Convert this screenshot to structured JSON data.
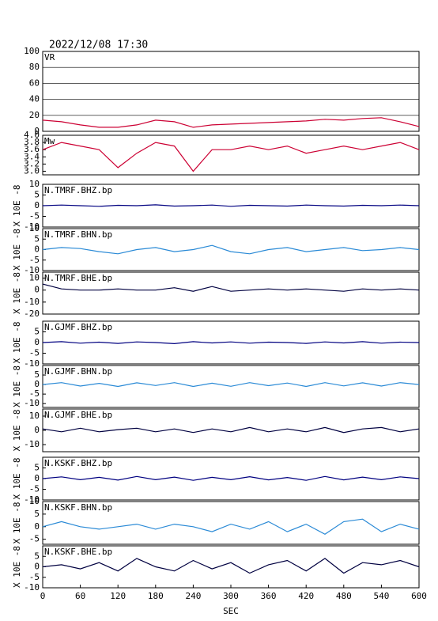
{
  "chart_data": [
    {
      "type": "line",
      "title": "2022/12/08  17:30",
      "label": "VR",
      "color": "#cc0033",
      "grid": true,
      "x": [
        0,
        30,
        60,
        90,
        120,
        150,
        180,
        210,
        240,
        270,
        300,
        330,
        360,
        390,
        420,
        450,
        480,
        510,
        540,
        570,
        600
      ],
      "values": [
        14,
        12,
        8,
        5,
        5,
        8,
        14,
        12,
        5,
        8,
        9,
        10,
        11,
        12,
        13,
        15,
        14,
        16,
        17,
        12,
        6
      ],
      "xlim": [
        0,
        600
      ],
      "ylim": [
        0,
        100
      ],
      "yticks": [
        0,
        20,
        40,
        60,
        80,
        100
      ]
    },
    {
      "type": "line",
      "label": "Mw",
      "color": "#cc0033",
      "x": [
        0,
        30,
        60,
        90,
        120,
        150,
        180,
        210,
        240,
        270,
        300,
        330,
        360,
        390,
        420,
        450,
        480,
        510,
        540,
        570,
        600
      ],
      "values": [
        3.6,
        3.8,
        3.7,
        3.6,
        3.1,
        3.5,
        3.8,
        3.7,
        3.0,
        3.6,
        3.6,
        3.7,
        3.6,
        3.7,
        3.5,
        3.6,
        3.7,
        3.6,
        3.7,
        3.8,
        3.6
      ],
      "xlim": [
        0,
        600
      ],
      "ylim": [
        2.9,
        4.0
      ],
      "yticks": [
        {
          "value": 3.0,
          "label": "3.0"
        },
        3.2,
        3.4,
        3.6,
        3.8,
        {
          "value": 4.0,
          "label": "4.0"
        }
      ]
    },
    {
      "type": "line",
      "label": "N.TMRF.BHZ.bp",
      "ylabel": "X 10E -8",
      "color": "#000080",
      "x": [
        0,
        30,
        60,
        90,
        120,
        150,
        180,
        210,
        240,
        270,
        300,
        330,
        360,
        390,
        420,
        450,
        480,
        510,
        540,
        570,
        600
      ],
      "values": [
        0,
        0.3,
        0,
        -0.3,
        0.2,
        0,
        0.4,
        -0.2,
        0,
        0.3,
        -0.3,
        0.2,
        0,
        -0.2,
        0.3,
        0,
        -0.2,
        0.2,
        0,
        0.3,
        0
      ],
      "xlim": [
        0,
        600
      ],
      "ylim": [
        -10,
        10
      ],
      "yticks": [
        -10,
        -5,
        0,
        5,
        10
      ]
    },
    {
      "type": "line",
      "label": "N.TMRF.BHN.bp",
      "ylabel": "X 10E -8",
      "color": "#2a8ad6",
      "x": [
        0,
        30,
        60,
        90,
        120,
        150,
        180,
        210,
        240,
        270,
        300,
        330,
        360,
        390,
        420,
        450,
        480,
        510,
        540,
        570,
        600
      ],
      "values": [
        0,
        1,
        0.5,
        -1,
        -2,
        0,
        1,
        -1,
        0,
        2,
        -1,
        -2,
        0,
        1,
        -1,
        0,
        1,
        -0.5,
        0,
        1,
        0
      ],
      "xlim": [
        0,
        600
      ],
      "ylim": [
        -10,
        10
      ],
      "yticks": [
        -10,
        -5,
        0,
        5,
        10
      ]
    },
    {
      "type": "line",
      "label": "N.TMRF.BHE.bp",
      "ylabel": "X 10E -8",
      "color": "#000040",
      "x": [
        0,
        30,
        60,
        90,
        120,
        150,
        180,
        210,
        240,
        270,
        300,
        330,
        360,
        390,
        420,
        450,
        480,
        510,
        540,
        570,
        600
      ],
      "values": [
        5,
        1,
        0,
        0,
        1,
        0,
        0,
        2,
        -1,
        3,
        -1,
        0,
        1,
        0,
        1,
        0,
        -1,
        1,
        0,
        1,
        0
      ],
      "xlim": [
        0,
        600
      ],
      "ylim": [
        -20,
        15
      ],
      "yticks": [
        -20,
        -10,
        0,
        10
      ]
    },
    {
      "type": "line",
      "label": "N.GJMF.BHZ.bp",
      "ylabel": "X 10E -8",
      "color": "#000080",
      "x": [
        0,
        30,
        60,
        90,
        120,
        150,
        180,
        210,
        240,
        270,
        300,
        330,
        360,
        390,
        420,
        450,
        480,
        510,
        540,
        570,
        600
      ],
      "values": [
        0,
        0.4,
        -0.3,
        0.2,
        -0.4,
        0.3,
        0,
        -0.5,
        0.4,
        -0.2,
        0.3,
        -0.3,
        0.2,
        0,
        -0.4,
        0.3,
        -0.2,
        0.4,
        -0.3,
        0.2,
        0
      ],
      "xlim": [
        0,
        600
      ],
      "ylim": [
        -10,
        10
      ],
      "yticks": [
        -10,
        -5,
        0,
        5
      ]
    },
    {
      "type": "line",
      "label": "N.GJMF.BHN.bp",
      "ylabel": "X 10E -8",
      "color": "#2a8ad6",
      "x": [
        0,
        30,
        60,
        90,
        120,
        150,
        180,
        210,
        240,
        270,
        300,
        330,
        360,
        390,
        420,
        450,
        480,
        510,
        540,
        570,
        600
      ],
      "values": [
        0,
        1,
        -0.8,
        0.6,
        -1,
        0.9,
        -0.5,
        1,
        -1,
        0.7,
        -0.9,
        1,
        -0.6,
        0.8,
        -1,
        1,
        -0.7,
        0.9,
        -0.8,
        1,
        0
      ],
      "xlim": [
        0,
        600
      ],
      "ylim": [
        -12,
        10
      ],
      "yticks": [
        -10,
        -5,
        0,
        5
      ]
    },
    {
      "type": "line",
      "label": "N.GJMF.BHE.bp",
      "ylabel": "X 10E -8",
      "color": "#000040",
      "x": [
        0,
        30,
        60,
        90,
        120,
        150,
        180,
        210,
        240,
        270,
        300,
        330,
        360,
        390,
        420,
        450,
        480,
        510,
        540,
        570,
        600
      ],
      "values": [
        1,
        -1,
        1.5,
        -1,
        0.5,
        1.5,
        -1,
        1,
        -1.5,
        1,
        -1,
        2,
        -1,
        1,
        -1,
        2,
        -1.5,
        1,
        2,
        -1,
        1
      ],
      "xlim": [
        0,
        600
      ],
      "ylim": [
        -15,
        15
      ],
      "yticks": [
        -10,
        0,
        10
      ]
    },
    {
      "type": "line",
      "label": "N.KSKF.BHZ.bp",
      "ylabel": "X 10E -8",
      "color": "#000080",
      "x": [
        0,
        30,
        60,
        90,
        120,
        150,
        180,
        210,
        240,
        270,
        300,
        330,
        360,
        390,
        420,
        450,
        480,
        510,
        540,
        570,
        600
      ],
      "values": [
        0,
        0.8,
        -0.5,
        0.6,
        -0.7,
        1,
        -0.5,
        0.7,
        -0.8,
        0.6,
        -0.5,
        0.9,
        -0.6,
        0.5,
        -0.8,
        1,
        -0.6,
        0.7,
        -0.5,
        0.8,
        0
      ],
      "xlim": [
        0,
        600
      ],
      "ylim": [
        -10,
        10
      ],
      "yticks": [
        -10,
        -5,
        0,
        5
      ]
    },
    {
      "type": "line",
      "label": "N.KSKF.BHN.bp",
      "ylabel": "X 10E -8",
      "color": "#2a8ad6",
      "x": [
        0,
        30,
        60,
        90,
        120,
        150,
        180,
        210,
        240,
        270,
        300,
        330,
        360,
        390,
        420,
        450,
        480,
        510,
        540,
        570,
        600
      ],
      "values": [
        0,
        2,
        0,
        -1,
        0,
        1,
        -1,
        1,
        0,
        -2,
        1,
        -1,
        2,
        -2,
        1,
        -3,
        2,
        3,
        -2,
        1,
        -1
      ],
      "xlim": [
        0,
        600
      ],
      "ylim": [
        -7,
        10
      ],
      "yticks": [
        -5,
        0,
        5,
        10
      ]
    },
    {
      "type": "line",
      "label": "N.KSKF.BHE.bp",
      "ylabel": "X 10E -8",
      "color": "#000040",
      "x": [
        0,
        30,
        60,
        90,
        120,
        150,
        180,
        210,
        240,
        270,
        300,
        330,
        360,
        390,
        420,
        450,
        480,
        510,
        540,
        570,
        600
      ],
      "values": [
        0,
        1,
        -1,
        2,
        -2,
        4,
        0,
        -2,
        3,
        -1,
        2,
        -3,
        1,
        3,
        -2,
        4,
        -3,
        2,
        1,
        3,
        0
      ],
      "xlim": [
        0,
        600
      ],
      "ylim": [
        -10,
        10
      ],
      "yticks": [
        -10,
        -5,
        0,
        5
      ],
      "xticks": [
        0,
        60,
        120,
        180,
        240,
        300,
        360,
        420,
        480,
        540,
        600
      ],
      "xlabel": "SEC"
    }
  ]
}
